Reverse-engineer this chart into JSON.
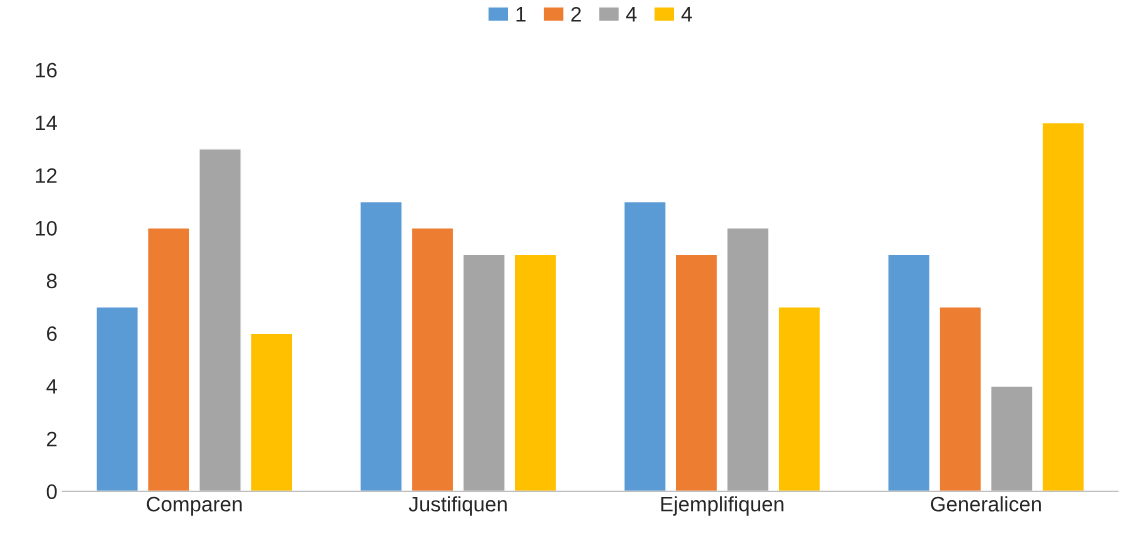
{
  "chart_data": {
    "type": "bar",
    "categories": [
      "Comparen",
      "Justifiquen",
      "Ejemplifiquen",
      "Generalicen"
    ],
    "series": [
      {
        "name": "1",
        "color": "#5b9bd5",
        "values": [
          7,
          11,
          11,
          9
        ]
      },
      {
        "name": "2",
        "color": "#ed7d31",
        "values": [
          10,
          10,
          9,
          7
        ]
      },
      {
        "name": "4",
        "color": "#a5a5a5",
        "values": [
          13,
          9,
          10,
          4
        ]
      },
      {
        "name": "4",
        "color": "#ffc000",
        "values": [
          6,
          9,
          7,
          14
        ]
      }
    ],
    "ylim": [
      0,
      16
    ],
    "yticks": [
      0,
      2,
      4,
      6,
      8,
      10,
      12,
      14,
      16
    ],
    "grid": false,
    "legend": "top"
  }
}
